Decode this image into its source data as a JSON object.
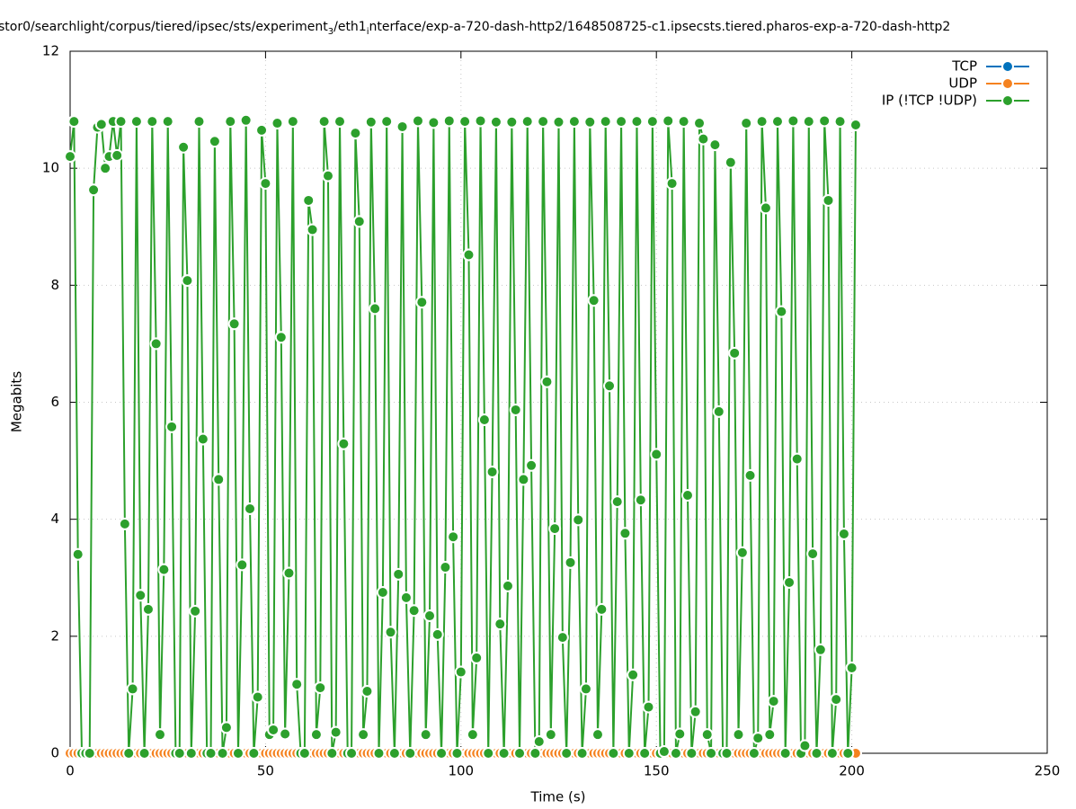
{
  "chart_data": {
    "type": "line",
    "title_parts": [
      "stor0/searchlight/corpus/tiered/ipsec/sts/experiment",
      "3",
      "/eth1",
      "i",
      "nterface/exp-a-720-dash-http2/1648508725-c1.ipsecsts.tiered.pharos-exp-a-720-dash-http2"
    ],
    "x_label": "Time (s)",
    "y_label": "Megabits",
    "xlim": [
      0,
      250
    ],
    "xticks": [
      0,
      50,
      100,
      150,
      200,
      250
    ],
    "ylim": [
      0,
      12
    ],
    "yticks": [
      0,
      2,
      4,
      6,
      8,
      10,
      12
    ],
    "grid": true,
    "legend": "top right",
    "x": [
      0,
      1,
      2,
      3,
      4,
      5,
      6,
      7,
      8,
      9,
      10,
      11,
      12,
      13,
      14,
      15,
      16,
      17,
      18,
      19,
      20,
      21,
      22,
      23,
      24,
      25,
      26,
      27,
      28,
      29,
      30,
      31,
      32,
      33,
      34,
      35,
      36,
      37,
      38,
      39,
      40,
      41,
      42,
      43,
      44,
      45,
      46,
      47,
      48,
      49,
      50,
      51,
      52,
      53,
      54,
      55,
      56,
      57,
      58,
      59,
      60,
      61,
      62,
      63,
      64,
      65,
      66,
      67,
      68,
      69,
      70,
      71,
      72,
      73,
      74,
      75,
      76,
      77,
      78,
      79,
      80,
      81,
      82,
      83,
      84,
      85,
      86,
      87,
      88,
      89,
      90,
      91,
      92,
      93,
      94,
      95,
      96,
      97,
      98,
      99,
      100,
      101,
      102,
      103,
      104,
      105,
      106,
      107,
      108,
      109,
      110,
      111,
      112,
      113,
      114,
      115,
      116,
      117,
      118,
      119,
      120,
      121,
      122,
      123,
      124,
      125,
      126,
      127,
      128,
      129,
      130,
      131,
      132,
      133,
      134,
      135,
      136,
      137,
      138,
      139,
      140,
      141,
      142,
      143,
      144,
      145,
      146,
      147,
      148,
      149,
      150,
      151,
      152,
      153,
      154,
      155,
      156,
      157,
      158,
      159,
      160,
      161,
      162,
      163,
      164,
      165,
      166,
      167,
      168,
      169,
      170,
      171,
      172,
      173,
      174,
      175,
      176,
      177,
      178,
      179,
      180,
      181,
      182,
      183,
      184,
      185,
      186,
      187,
      188,
      189,
      190,
      191,
      192,
      193,
      194,
      195,
      196,
      197,
      198,
      199,
      200,
      201
    ],
    "series": [
      {
        "name": "TCP",
        "color": "#0072bd",
        "values": [
          0,
          0,
          0,
          0,
          0,
          0,
          0,
          0,
          0,
          0,
          0,
          0,
          0,
          0,
          0,
          0,
          0,
          0,
          0,
          0,
          0,
          0,
          0,
          0,
          0,
          0,
          0,
          0,
          0,
          0,
          0,
          0,
          0,
          0,
          0,
          0,
          0,
          0,
          0,
          0,
          0,
          0,
          0,
          0,
          0,
          0,
          0,
          0,
          0,
          0,
          0,
          0,
          0,
          0,
          0,
          0,
          0,
          0,
          0,
          0,
          0,
          0,
          0,
          0,
          0,
          0,
          0,
          0,
          0,
          0,
          0,
          0,
          0,
          0,
          0,
          0,
          0,
          0,
          0,
          0,
          0,
          0,
          0,
          0,
          0,
          0,
          0,
          0,
          0,
          0,
          0,
          0,
          0,
          0,
          0,
          0,
          0,
          0,
          0,
          0,
          0,
          0,
          0,
          0,
          0,
          0,
          0,
          0,
          0,
          0,
          0,
          0,
          0,
          0,
          0,
          0,
          0,
          0,
          0,
          0,
          0,
          0,
          0,
          0,
          0,
          0,
          0,
          0,
          0,
          0,
          0,
          0,
          0,
          0,
          0,
          0,
          0,
          0,
          0,
          0,
          0,
          0,
          0,
          0,
          0,
          0,
          0,
          0,
          0,
          0,
          0,
          0,
          0,
          0,
          0,
          0,
          0,
          0,
          0,
          0,
          0,
          0,
          0,
          0,
          0,
          0,
          0,
          0,
          0,
          0,
          0,
          0,
          0,
          0,
          0,
          0,
          0,
          0,
          0,
          0,
          0,
          0,
          0,
          0,
          0,
          0,
          0,
          0,
          0,
          0,
          0,
          0,
          0,
          0,
          0,
          0,
          0,
          0,
          0,
          0,
          0,
          0
        ]
      },
      {
        "name": "UDP",
        "color": "#f5821f",
        "values": [
          0,
          0,
          0,
          0,
          0,
          0,
          0,
          0,
          0,
          0,
          0,
          0,
          0,
          0,
          0,
          0,
          0,
          0,
          0,
          0,
          0,
          0,
          0,
          0,
          0,
          0,
          0,
          0,
          0,
          0,
          0,
          0,
          0,
          0,
          0,
          0,
          0,
          0,
          0,
          0,
          0,
          0,
          0,
          0,
          0,
          0,
          0,
          0,
          0,
          0,
          0,
          0,
          0,
          0,
          0,
          0,
          0,
          0,
          0,
          0,
          0,
          0,
          0,
          0,
          0,
          0,
          0,
          0,
          0,
          0,
          0,
          0,
          0,
          0,
          0,
          0,
          0,
          0,
          0,
          0,
          0,
          0,
          0,
          0,
          0,
          0,
          0,
          0,
          0,
          0,
          0,
          0,
          0,
          0,
          0,
          0,
          0,
          0,
          0,
          0,
          0,
          0,
          0,
          0,
          0,
          0,
          0,
          0,
          0,
          0,
          0,
          0,
          0,
          0,
          0,
          0,
          0,
          0,
          0,
          0,
          0,
          0,
          0,
          0,
          0,
          0,
          0,
          0,
          0,
          0,
          0,
          0,
          0,
          0,
          0,
          0,
          0,
          0,
          0,
          0,
          0,
          0,
          0,
          0,
          0,
          0,
          0,
          0,
          0,
          0,
          0,
          0,
          0,
          0,
          0,
          0,
          0,
          0,
          0,
          0,
          0,
          0,
          0,
          0,
          0,
          0,
          0,
          0,
          0,
          0,
          0,
          0,
          0,
          0,
          0,
          0,
          0,
          0,
          0,
          0,
          0,
          0,
          0,
          0,
          0,
          0,
          0,
          0,
          0,
          0,
          0,
          0,
          0,
          0,
          0,
          0,
          0,
          0,
          0,
          0,
          0,
          0
        ]
      },
      {
        "name": "IP (!TCP  !UDP)",
        "color": "#2ca02c",
        "values": [
          10.2,
          10.8,
          3.4,
          0,
          0,
          0,
          9.63,
          10.7,
          10.75,
          10.0,
          10.2,
          10.8,
          10.22,
          10.8,
          3.92,
          0,
          1.1,
          10.8,
          2.7,
          0,
          2.46,
          10.8,
          7.0,
          0.32,
          3.14,
          10.8,
          5.58,
          0,
          0,
          10.36,
          8.08,
          0,
          2.43,
          10.8,
          5.37,
          0,
          0,
          10.46,
          4.68,
          0,
          0.44,
          10.8,
          7.34,
          0,
          3.22,
          10.82,
          4.18,
          0,
          0.96,
          10.65,
          9.74,
          0.32,
          0.4,
          10.77,
          7.11,
          0.33,
          3.08,
          10.8,
          1.18,
          0,
          0,
          9.45,
          8.95,
          0.32,
          1.12,
          10.8,
          9.87,
          0,
          0.36,
          10.8,
          5.29,
          0,
          0,
          10.6,
          9.09,
          0.32,
          1.06,
          10.79,
          7.6,
          0,
          2.75,
          10.8,
          2.07,
          0,
          3.06,
          10.71,
          2.66,
          0,
          2.44,
          10.81,
          7.71,
          0.32,
          2.35,
          10.78,
          2.03,
          0,
          3.18,
          10.81,
          3.7,
          0,
          1.39,
          10.8,
          8.52,
          0.32,
          1.63,
          10.81,
          5.7,
          0,
          4.81,
          10.79,
          2.21,
          0,
          2.86,
          10.79,
          5.87,
          0,
          4.68,
          10.8,
          4.92,
          0,
          0.2,
          10.8,
          6.35,
          0.32,
          3.84,
          10.79,
          1.98,
          0,
          3.26,
          10.8,
          3.99,
          0,
          1.1,
          10.79,
          7.74,
          0.32,
          2.46,
          10.8,
          6.28,
          0,
          4.3,
          10.8,
          3.76,
          0,
          1.34,
          10.8,
          4.33,
          0,
          0.79,
          10.8,
          5.11,
          0,
          0.03,
          10.81,
          9.74,
          0,
          0.33,
          10.8,
          4.41,
          0,
          0.71,
          10.77,
          10.5,
          0.32,
          0,
          10.4,
          5.84,
          0,
          0,
          10.1,
          6.84,
          0.32,
          3.43,
          10.77,
          4.75,
          0,
          0.26,
          10.8,
          9.32,
          0.32,
          0.89,
          10.8,
          7.55,
          0,
          2.92,
          10.81,
          5.03,
          0,
          0.13,
          10.8,
          3.41,
          0,
          1.77,
          10.81,
          9.45,
          0,
          0.92,
          10.8,
          3.75,
          0,
          1.46,
          10.74
        ]
      }
    ]
  }
}
